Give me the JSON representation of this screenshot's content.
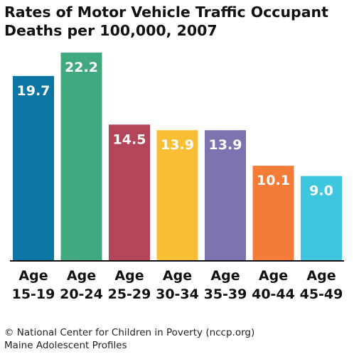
{
  "chart_data": {
    "type": "bar",
    "title_lines": [
      "Rates of Motor Vehicle Traffic Occupant",
      "Deaths per 100,000, 2007"
    ],
    "categories": [
      [
        "Age",
        "15-19"
      ],
      [
        "Age",
        "20-24"
      ],
      [
        "Age",
        "25-29"
      ],
      [
        "Age",
        "30-34"
      ],
      [
        "Age",
        "35-39"
      ],
      [
        "Age",
        "40-44"
      ],
      [
        "Age",
        "45-49"
      ]
    ],
    "values": [
      19.7,
      22.2,
      14.5,
      13.9,
      13.9,
      10.1,
      9.0
    ],
    "value_labels": [
      "19.7",
      "22.2",
      "14.5",
      "13.9",
      "13.9",
      "10.1",
      "9.0"
    ],
    "colors": [
      "#0b76a3",
      "#41a97f",
      "#b34558",
      "#f9bf34",
      "#7c73b0",
      "#f47c38",
      "#3ec6df"
    ],
    "ylim": [
      0,
      22.2
    ],
    "grid": false,
    "legend": "none"
  },
  "source": {
    "line1": "© National Center for Children in Poverty (nccp.org)",
    "line2": "Maine Adolescent Profiles"
  }
}
